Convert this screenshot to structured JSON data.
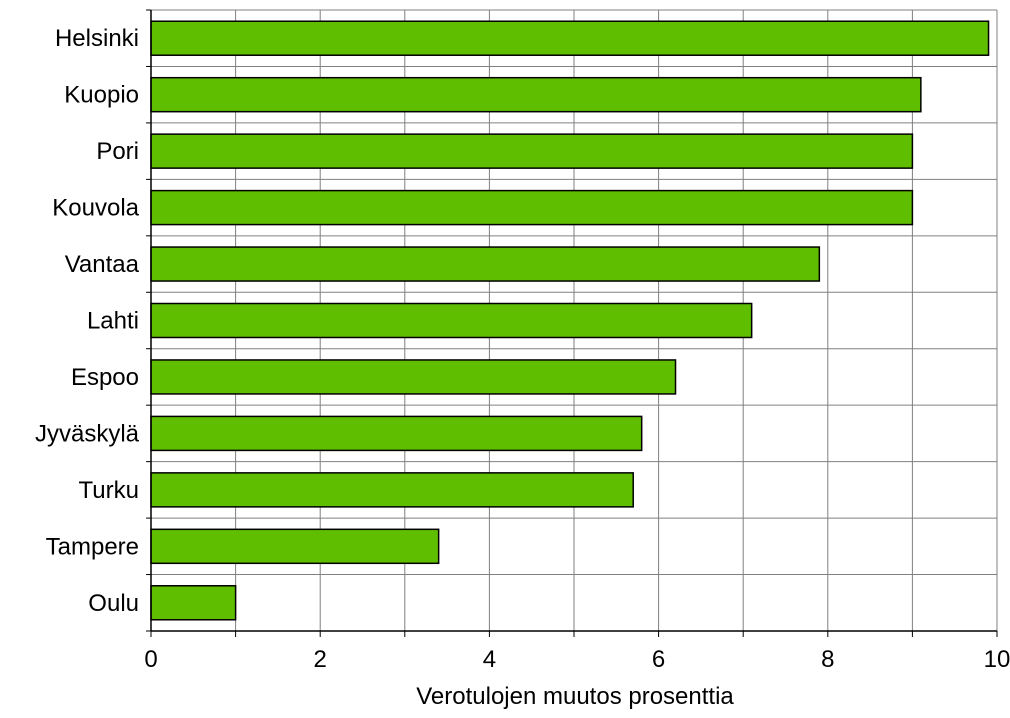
{
  "chart_data": {
    "type": "bar",
    "orientation": "horizontal",
    "categories": [
      "Helsinki",
      "Kuopio",
      "Pori",
      "Kouvola",
      "Vantaa",
      "Lahti",
      "Espoo",
      "Jyväskylä",
      "Turku",
      "Tampere",
      "Oulu"
    ],
    "values": [
      9.9,
      9.1,
      9.0,
      9.0,
      7.9,
      7.1,
      6.2,
      5.8,
      5.7,
      3.4,
      1.0
    ],
    "title": "",
    "xlabel": "Verotulojen muutos prosenttia",
    "ylabel": "",
    "xlim": [
      0,
      10
    ],
    "x_ticks": [
      0,
      2,
      4,
      6,
      8,
      10
    ],
    "grid": true,
    "bar_color": "#5fbe00",
    "bar_edge_color": "#000000"
  }
}
